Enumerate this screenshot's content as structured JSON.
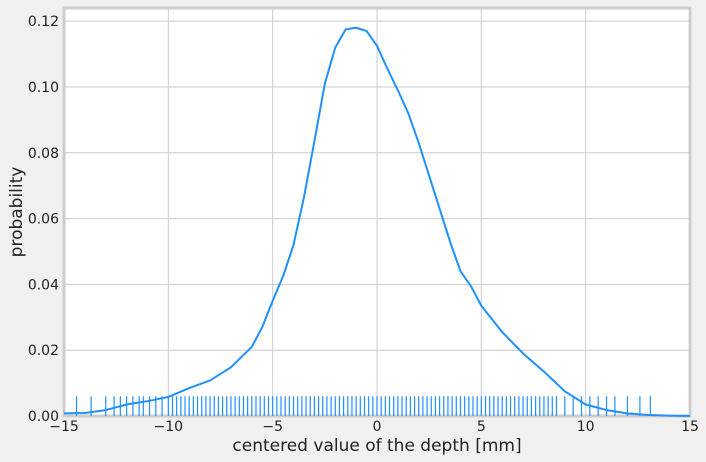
{
  "chart_data": {
    "type": "line",
    "title": "",
    "xlabel": "centered value of the depth [mm]",
    "ylabel": "probability",
    "xlim": [
      -15,
      15
    ],
    "ylim": [
      0,
      0.124
    ],
    "x_ticks": [
      -15,
      -10,
      -5,
      0,
      5,
      10,
      15
    ],
    "x_tick_labels": [
      "−15",
      "−10",
      "−5",
      "0",
      "5",
      "10",
      "15"
    ],
    "y_ticks": [
      0.0,
      0.02,
      0.04,
      0.06,
      0.08,
      0.1,
      0.12
    ],
    "y_tick_labels": [
      "0.00",
      "0.02",
      "0.04",
      "0.06",
      "0.08",
      "0.10",
      "0.12"
    ],
    "grid": true,
    "legend": "none",
    "series": [
      {
        "kind": "kde-line",
        "color": "#1e90ff",
        "x": [
          -15,
          -14,
          -13,
          -12,
          -11,
          -10,
          -9,
          -8,
          -7,
          -6,
          -5.5,
          -5,
          -4.5,
          -4,
          -3.5,
          -3,
          -2.5,
          -2,
          -1.5,
          -1,
          -0.5,
          0,
          0.5,
          1,
          1.5,
          2,
          2.5,
          3,
          3.5,
          4,
          4.5,
          5,
          6,
          7,
          8,
          9,
          10,
          11,
          12,
          13,
          14,
          15
        ],
        "y": [
          0.0008,
          0.0009,
          0.0018,
          0.0035,
          0.0045,
          0.0058,
          0.0085,
          0.0108,
          0.0148,
          0.021,
          0.027,
          0.035,
          0.0425,
          0.052,
          0.0665,
          0.0835,
          0.101,
          0.112,
          0.1175,
          0.118,
          0.117,
          0.1125,
          0.1055,
          0.099,
          0.092,
          0.083,
          0.073,
          0.063,
          0.053,
          0.044,
          0.0395,
          0.0335,
          0.0255,
          0.019,
          0.0135,
          0.0075,
          0.0035,
          0.0018,
          0.0008,
          0.0003,
          0.0001,
          0.0
        ]
      },
      {
        "kind": "rug",
        "color": "#1e90ff",
        "height": 0.006,
        "x": [
          -14.4,
          -13.7,
          -13.0,
          -12.6,
          -12.3,
          -12.0,
          -11.7,
          -11.4,
          -11.2,
          -10.9,
          -10.6,
          -10.3,
          -10.0,
          -9.8,
          -9.6,
          -9.4,
          -9.2,
          -9.0,
          -8.8,
          -8.6,
          -8.4,
          -8.2,
          -8.0,
          -7.8,
          -7.6,
          -7.4,
          -7.2,
          -7.0,
          -6.8,
          -6.6,
          -6.4,
          -6.2,
          -6.0,
          -5.8,
          -5.6,
          -5.4,
          -5.2,
          -5.0,
          -4.8,
          -4.6,
          -4.4,
          -4.2,
          -4.0,
          -3.8,
          -3.6,
          -3.4,
          -3.2,
          -3.0,
          -2.8,
          -2.6,
          -2.4,
          -2.2,
          -2.0,
          -1.8,
          -1.6,
          -1.4,
          -1.2,
          -1.0,
          -0.8,
          -0.6,
          -0.4,
          -0.2,
          0.0,
          0.2,
          0.4,
          0.6,
          0.8,
          1.0,
          1.2,
          1.4,
          1.6,
          1.8,
          2.0,
          2.2,
          2.4,
          2.6,
          2.8,
          3.0,
          3.2,
          3.4,
          3.6,
          3.8,
          4.0,
          4.2,
          4.4,
          4.6,
          4.8,
          5.0,
          5.2,
          5.4,
          5.6,
          5.8,
          6.0,
          6.2,
          6.4,
          6.6,
          6.8,
          7.0,
          7.2,
          7.4,
          7.6,
          7.8,
          8.0,
          8.2,
          8.4,
          8.6,
          9.0,
          9.4,
          9.8,
          10.2,
          10.6,
          11.0,
          11.4,
          12.0,
          12.6,
          13.1
        ]
      }
    ]
  }
}
